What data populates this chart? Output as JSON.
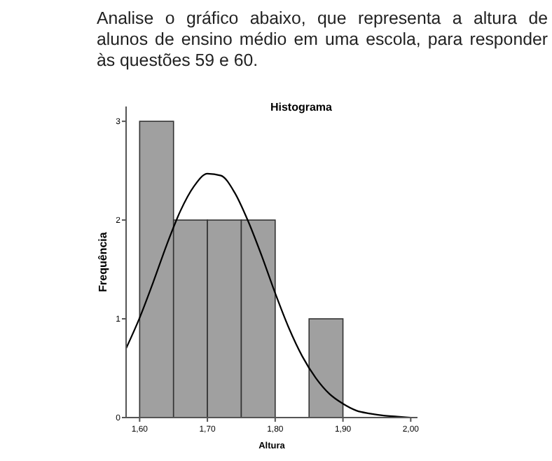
{
  "chart_data": {
    "type": "histogram",
    "title": "Histograma",
    "xlabel": "Altura",
    "ylabel": "Frequência",
    "annotations": [
      "Analise o gráfico abaixo, que representa a altura de alunos de ensino médio em uma escola, para responder às questões 59 e 60."
    ],
    "bins": [
      1.6,
      1.65,
      1.7,
      1.75,
      1.8,
      1.85,
      1.9
    ],
    "values": [
      3,
      2,
      2,
      2,
      0,
      1
    ],
    "color": "#a0a0a0",
    "series": [
      {
        "type": "line",
        "color": "#000000",
        "x": [
          1.58,
          1.6,
          1.62,
          1.64,
          1.66,
          1.68,
          1.7,
          1.72,
          1.74,
          1.76,
          1.78,
          1.8,
          1.82,
          1.84,
          1.86,
          1.88,
          1.9,
          1.92,
          1.94,
          1.96,
          1.98,
          2.0
        ],
        "values": [
          0.7,
          1.01,
          1.37,
          1.75,
          2.09,
          2.34,
          2.47,
          2.45,
          2.28,
          1.99,
          1.64,
          1.26,
          0.91,
          0.62,
          0.4,
          0.24,
          0.14,
          0.07,
          0.04,
          0.02,
          0.01,
          0.0
        ]
      }
    ],
    "xlim": [
      1.58,
      2.01
    ],
    "ylim": [
      0,
      3.15
    ],
    "xticks": [
      {
        "value": 1.6,
        "label": "1,60"
      },
      {
        "value": 1.7,
        "label": "1,70"
      },
      {
        "value": 1.8,
        "label": "1,80"
      },
      {
        "value": 1.9,
        "label": "1,90"
      },
      {
        "value": 2.0,
        "label": "2,00"
      }
    ],
    "yticks": [
      0,
      1,
      2,
      3
    ],
    "grid": false
  }
}
